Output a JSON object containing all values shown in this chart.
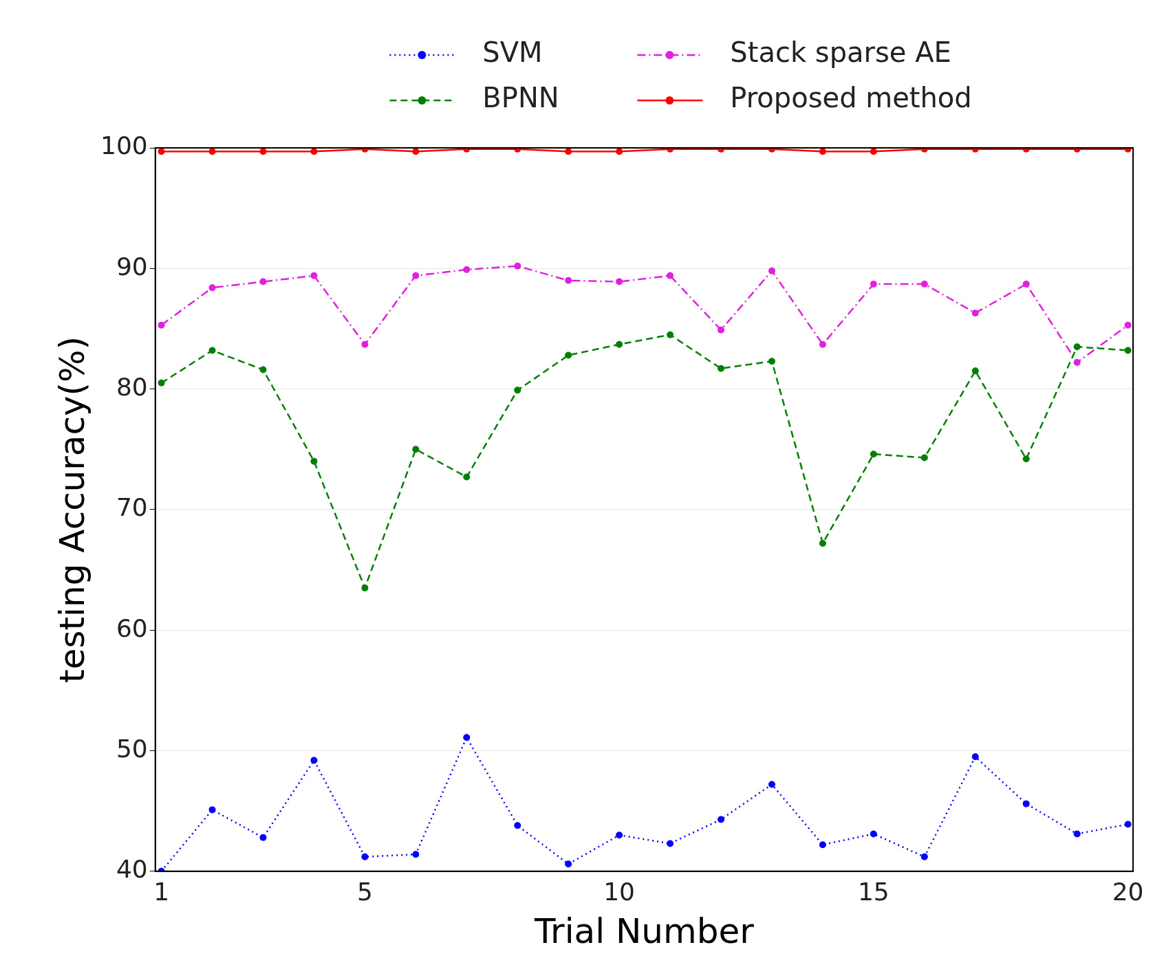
{
  "chart_data": {
    "type": "line",
    "xlabel": "Trial Number",
    "ylabel": "testing Accuracy(%)",
    "x": [
      1,
      2,
      3,
      4,
      5,
      6,
      7,
      8,
      9,
      10,
      11,
      12,
      13,
      14,
      15,
      16,
      17,
      18,
      19,
      20
    ],
    "xlim": [
      0.88,
      20.1
    ],
    "xticks": [
      1,
      5,
      10,
      15,
      20
    ],
    "ylim": [
      40,
      100
    ],
    "yticks": [
      40,
      50,
      60,
      70,
      80,
      90,
      100
    ],
    "grid": "y",
    "legend": "top",
    "marker": "circle",
    "series": [
      {
        "name": "SVM",
        "color": "#0000ff",
        "line_style": "dotted",
        "values": [
          40.0,
          45.1,
          42.8,
          49.2,
          41.2,
          41.4,
          51.1,
          43.8,
          40.6,
          43.0,
          42.3,
          44.3,
          47.2,
          42.2,
          43.1,
          41.2,
          49.5,
          45.6,
          43.1,
          43.9
        ]
      },
      {
        "name": "BPNN",
        "color": "#008000",
        "line_style": "dashed",
        "values": [
          80.5,
          83.2,
          81.6,
          74.0,
          63.5,
          75.0,
          72.7,
          79.9,
          82.8,
          83.7,
          84.5,
          81.7,
          82.3,
          67.2,
          74.6,
          74.3,
          81.5,
          74.2,
          83.5,
          83.2
        ]
      },
      {
        "name": "Stack sparse AE",
        "color": "#e020e0",
        "line_style": "dashdot",
        "values": [
          85.3,
          88.4,
          88.9,
          89.4,
          83.7,
          89.4,
          89.9,
          90.2,
          89.0,
          88.9,
          89.4,
          84.9,
          89.8,
          83.7,
          88.7,
          88.7,
          86.3,
          88.7,
          82.2,
          85.3
        ]
      },
      {
        "name": "Proposed method",
        "color": "#ff0000",
        "line_style": "solid",
        "values": [
          99.7,
          99.7,
          99.7,
          99.7,
          99.9,
          99.7,
          99.9,
          99.9,
          99.7,
          99.7,
          99.9,
          99.9,
          99.9,
          99.7,
          99.7,
          99.9,
          99.9,
          99.9,
          99.9,
          99.9
        ]
      }
    ]
  }
}
